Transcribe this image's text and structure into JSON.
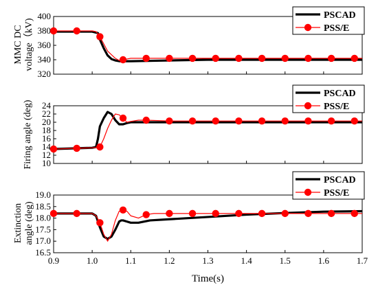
{
  "chart_data": [
    {
      "type": "line",
      "ylabel_lines": [
        "MMC DC",
        "voltage（kV)"
      ],
      "xlim": [
        0.9,
        1.7
      ],
      "ylim": [
        320,
        400
      ],
      "yticks": [
        320,
        340,
        360,
        380,
        400
      ],
      "grid": false,
      "legend_position": "top-right",
      "series": [
        {
          "name": "PSCAD",
          "color": "#000000",
          "x": [
            0.9,
            1.0,
            1.015,
            1.02,
            1.03,
            1.04,
            1.05,
            1.06,
            1.07,
            1.1,
            1.2,
            1.3,
            1.5,
            1.7
          ],
          "y": [
            379,
            379,
            377,
            368,
            356,
            346,
            341,
            339,
            338,
            338,
            339,
            340,
            340,
            340
          ]
        },
        {
          "name": "PSS/E",
          "color": "#ff0000",
          "x": [
            0.9,
            1.0,
            1.01,
            1.02,
            1.04,
            1.06,
            1.07,
            1.08,
            1.09,
            1.1,
            1.15,
            1.2,
            1.3,
            1.7
          ],
          "y": [
            380,
            380,
            379,
            372,
            352,
            342,
            339,
            340,
            341,
            342,
            342,
            342,
            342,
            342
          ],
          "markers_x": [
            0.9,
            0.96,
            1.02,
            1.08,
            1.14,
            1.2,
            1.26,
            1.32,
            1.38,
            1.44,
            1.5,
            1.56,
            1.62,
            1.68
          ]
        }
      ]
    },
    {
      "type": "line",
      "ylabel_lines": [
        "Firing angle (deg)"
      ],
      "xlim": [
        0.9,
        1.7
      ],
      "ylim": [
        10,
        24
      ],
      "yticks": [
        10,
        12,
        14,
        16,
        18,
        20,
        22,
        24
      ],
      "grid": false,
      "legend_position": "top-right",
      "series": [
        {
          "name": "PSCAD",
          "color": "#000000",
          "x": [
            0.9,
            1.0,
            1.01,
            1.015,
            1.02,
            1.03,
            1.04,
            1.05,
            1.06,
            1.07,
            1.08,
            1.09,
            1.1,
            1.15,
            1.2,
            1.7
          ],
          "y": [
            13.5,
            13.8,
            14.0,
            16.0,
            19.0,
            21.0,
            22.5,
            22.0,
            20.5,
            19.5,
            19.5,
            19.8,
            20.0,
            20.0,
            20.0,
            20.0
          ]
        },
        {
          "name": "PSS/E",
          "color": "#ff0000",
          "x": [
            0.9,
            1.0,
            1.02,
            1.03,
            1.04,
            1.05,
            1.06,
            1.07,
            1.08,
            1.09,
            1.1,
            1.12,
            1.14,
            1.2,
            1.7
          ],
          "y": [
            13.5,
            13.8,
            14.0,
            16.0,
            18.5,
            20.5,
            22.0,
            21.8,
            21.0,
            20.0,
            20.2,
            20.5,
            20.5,
            20.3,
            20.3
          ],
          "markers_x": [
            0.9,
            0.96,
            1.02,
            1.08,
            1.14,
            1.2,
            1.26,
            1.32,
            1.38,
            1.44,
            1.5,
            1.56,
            1.62,
            1.68
          ]
        }
      ]
    },
    {
      "type": "line",
      "ylabel_lines": [
        "Extinction",
        "angle (deg)"
      ],
      "xlim": [
        0.9,
        1.7
      ],
      "xticks": [
        0.9,
        1.0,
        1.1,
        1.2,
        1.3,
        1.4,
        1.5,
        1.6,
        1.7
      ],
      "xlabel": "Time(s)",
      "ylim": [
        16.5,
        19.0
      ],
      "yticks": [
        16.5,
        17.0,
        17.5,
        18.0,
        18.5,
        19.0
      ],
      "grid": false,
      "legend_position": "top-right",
      "series": [
        {
          "name": "PSCAD",
          "color": "#000000",
          "x": [
            0.9,
            1.0,
            1.01,
            1.02,
            1.03,
            1.04,
            1.05,
            1.06,
            1.07,
            1.075,
            1.08,
            1.09,
            1.1,
            1.12,
            1.15,
            1.2,
            1.3,
            1.4,
            1.5,
            1.6,
            1.7
          ],
          "y": [
            18.2,
            18.2,
            18.1,
            17.6,
            17.2,
            17.1,
            17.2,
            17.5,
            17.85,
            17.9,
            17.9,
            17.85,
            17.8,
            17.8,
            17.9,
            17.95,
            18.05,
            18.15,
            18.22,
            18.28,
            18.3
          ]
        },
        {
          "name": "PSS/E",
          "color": "#ff0000",
          "x": [
            0.9,
            1.0,
            1.01,
            1.02,
            1.03,
            1.04,
            1.05,
            1.06,
            1.07,
            1.08,
            1.09,
            1.1,
            1.12,
            1.14,
            1.16,
            1.2,
            1.3,
            1.7
          ],
          "y": [
            18.2,
            18.2,
            18.1,
            17.8,
            17.3,
            17.0,
            17.3,
            17.9,
            18.3,
            18.35,
            18.3,
            18.1,
            18.0,
            18.15,
            18.2,
            18.2,
            18.2,
            18.2
          ],
          "markers_x": [
            0.9,
            0.96,
            1.02,
            1.08,
            1.14,
            1.2,
            1.26,
            1.32,
            1.38,
            1.44,
            1.5,
            1.56,
            1.62,
            1.68
          ]
        }
      ]
    }
  ]
}
